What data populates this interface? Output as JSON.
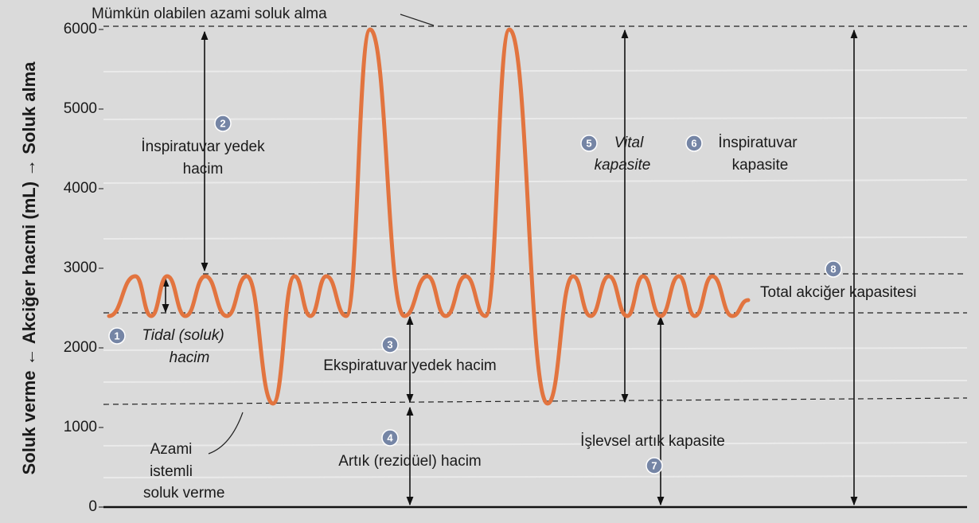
{
  "chart_data": {
    "type": "line",
    "ylabel": "Soluk verme ← Akciğer hacmi (mL) → Soluk alma",
    "ylim": [
      0,
      6000
    ],
    "yticks": [
      0,
      1000,
      2000,
      3000,
      4000,
      5000,
      6000
    ],
    "xlim": [
      0,
      108.5
    ],
    "series": [
      {
        "color": "#e2743f",
        "x": [
          0.7,
          4,
          6,
          8,
          10.3,
          12.8,
          15.5,
          18,
          21.3,
          24,
          26,
          28,
          30.5,
          33.5,
          37.8,
          40.7,
          43,
          45.5,
          48,
          51,
          55.8,
          59,
          61.2,
          63.5,
          65.8,
          67.8,
          70,
          72.3,
          74.3,
          76.5,
          79,
          81
        ],
        "values": [
          2400,
          2900,
          2400,
          2900,
          2400,
          2900,
          2400,
          2900,
          1300,
          2900,
          2400,
          2900,
          2400,
          6000,
          2400,
          2900,
          2400,
          2900,
          2400,
          6000,
          1300,
          2900,
          2400,
          2900,
          2400,
          2900,
          2400,
          2900,
          2400,
          2900,
          2400,
          2600
        ]
      }
    ],
    "annotations": [
      {
        "text": [
          "Mümkün olabilen azami soluk alma"
        ]
      },
      {
        "badge": "2",
        "text": [
          "İnspiratuvar yedek",
          "hacim"
        ]
      },
      {
        "badge": "1",
        "text": [
          "Tidal (soluk)",
          "hacim"
        ]
      },
      {
        "badge": "3",
        "text": [
          "Ekspiratuvar yedek hacim"
        ]
      },
      {
        "badge": "4",
        "text": [
          "Artık (rezidüel) hacim"
        ]
      },
      {
        "text": [
          "Azami",
          "istemli",
          "soluk verme"
        ]
      },
      {
        "badge": "5",
        "text": [
          "Vital",
          "kapasite"
        ]
      },
      {
        "badge": "6",
        "text": [
          "İnspiratuvar",
          "kapasite"
        ]
      },
      {
        "badge": "8",
        "text": [
          "Total akciğer kapasitesi"
        ]
      },
      {
        "badge": "7",
        "text": [
          "İşlevsel artık kapasite"
        ]
      }
    ]
  }
}
